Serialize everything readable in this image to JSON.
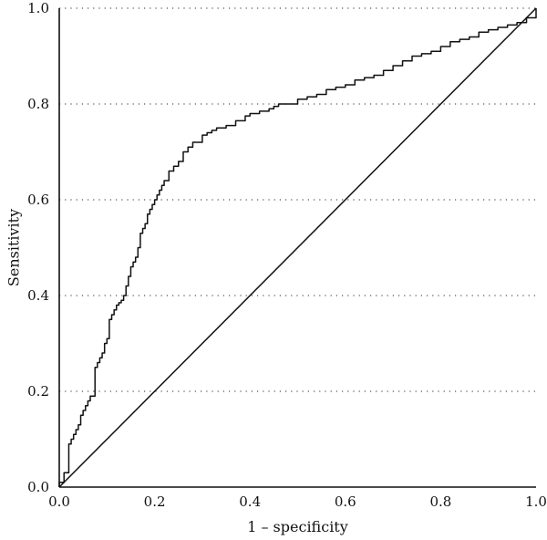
{
  "chart_data": {
    "type": "line",
    "title": "",
    "xlabel": "1 – specificity",
    "ylabel": "Sensitivity",
    "xlim": [
      0,
      1
    ],
    "ylim": [
      0,
      1
    ],
    "x_ticks": [
      "0.0",
      "0.2",
      "0.4",
      "0.6",
      "0.8",
      "1.0"
    ],
    "y_ticks": [
      "0.0",
      "0.2",
      "0.4",
      "0.6",
      "0.8",
      "1.0"
    ],
    "grid": "horizontal dotted",
    "legend": "none",
    "series": [
      {
        "x": [
          0.0,
          0.0,
          0.01,
          0.01,
          0.015,
          0.02,
          0.02,
          0.025,
          0.03,
          0.035,
          0.04,
          0.045,
          0.05,
          0.055,
          0.06,
          0.065,
          0.07,
          0.075,
          0.08,
          0.085,
          0.09,
          0.095,
          0.1,
          0.105,
          0.11,
          0.115,
          0.12,
          0.125,
          0.13,
          0.135,
          0.14,
          0.145,
          0.15,
          0.155,
          0.16,
          0.165,
          0.17,
          0.175,
          0.18,
          0.185,
          0.19,
          0.195,
          0.2,
          0.205,
          0.21,
          0.215,
          0.22,
          0.23,
          0.24,
          0.25,
          0.26,
          0.27,
          0.28,
          0.29,
          0.3,
          0.31,
          0.32,
          0.33,
          0.35,
          0.37,
          0.39,
          0.4,
          0.42,
          0.44,
          0.45,
          0.46,
          0.5,
          0.52,
          0.54,
          0.56,
          0.58,
          0.6,
          0.62,
          0.64,
          0.66,
          0.68,
          0.7,
          0.72,
          0.74,
          0.76,
          0.78,
          0.8,
          0.82,
          0.84,
          0.86,
          0.88,
          0.9,
          0.92,
          0.94,
          0.96,
          0.98,
          1.0
        ],
        "y": [
          0.0,
          0.01,
          0.02,
          0.03,
          0.03,
          0.03,
          0.09,
          0.1,
          0.11,
          0.12,
          0.13,
          0.15,
          0.16,
          0.17,
          0.18,
          0.19,
          0.19,
          0.25,
          0.26,
          0.27,
          0.28,
          0.3,
          0.31,
          0.35,
          0.36,
          0.37,
          0.38,
          0.385,
          0.39,
          0.4,
          0.42,
          0.44,
          0.46,
          0.47,
          0.48,
          0.5,
          0.53,
          0.54,
          0.55,
          0.57,
          0.58,
          0.59,
          0.6,
          0.61,
          0.62,
          0.63,
          0.64,
          0.66,
          0.67,
          0.68,
          0.7,
          0.71,
          0.72,
          0.72,
          0.735,
          0.74,
          0.745,
          0.75,
          0.755,
          0.765,
          0.775,
          0.78,
          0.785,
          0.79,
          0.795,
          0.8,
          0.81,
          0.815,
          0.82,
          0.83,
          0.835,
          0.84,
          0.85,
          0.855,
          0.86,
          0.87,
          0.88,
          0.89,
          0.9,
          0.905,
          0.91,
          0.92,
          0.93,
          0.935,
          0.94,
          0.95,
          0.955,
          0.96,
          0.965,
          0.97,
          0.98,
          1.0
        ]
      },
      {
        "x": [
          0,
          1
        ],
        "y": [
          0,
          1
        ]
      }
    ]
  }
}
